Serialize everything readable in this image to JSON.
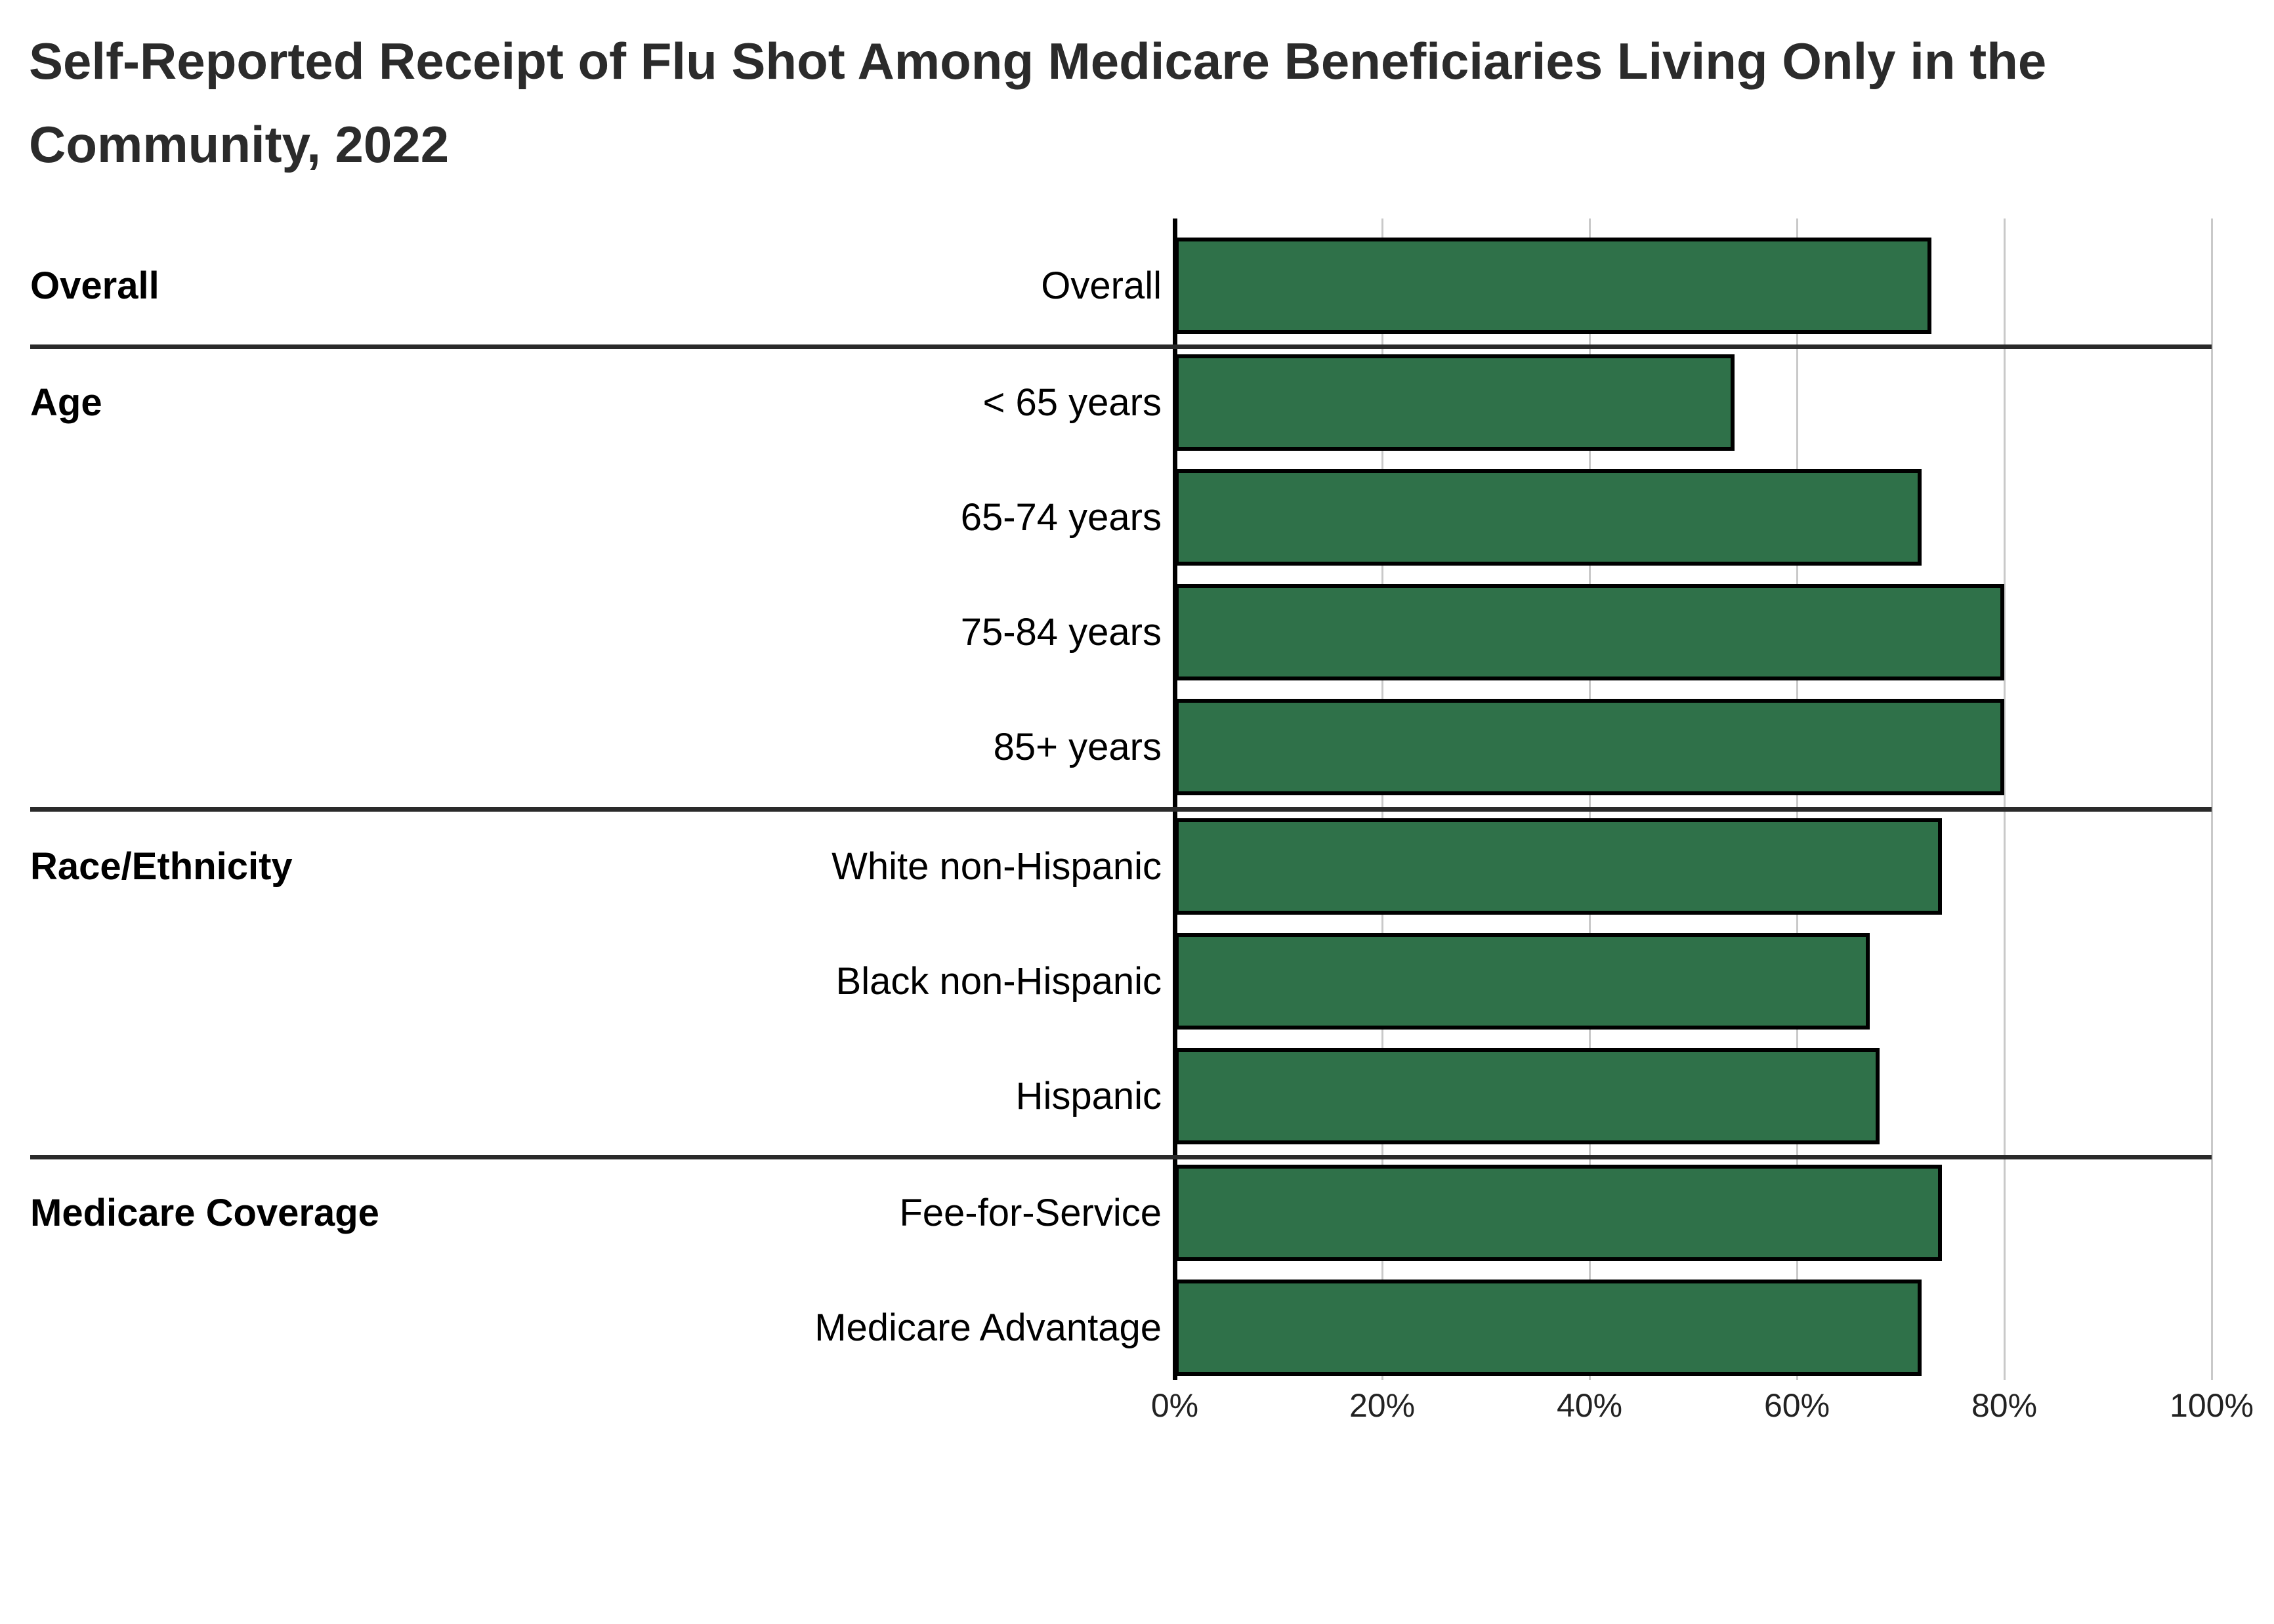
{
  "chart": {
    "title_lines": [
      "Self-Reported Receipt of Flu Shot Among Medicare Beneficiaries Living Only in the",
      "Community, 2022"
    ]
  },
  "chart_data": {
    "type": "bar",
    "orientation": "horizontal",
    "title": "Self-Reported Receipt of Flu Shot Among Medicare Beneficiaries Living Only in the Community, 2022",
    "xlabel": "",
    "ylabel": "",
    "unit": "percent",
    "xlim": [
      0,
      100
    ],
    "x_tick_labels": [
      "0%",
      "20%",
      "40%",
      "60%",
      "80%",
      "100%"
    ],
    "x_tick_values": [
      0,
      20,
      40,
      60,
      80,
      100
    ],
    "grid": true,
    "legend": false,
    "bar_fill_color": "#2F7149",
    "bar_border_color": "#000000",
    "gridline_color": "#c9c9c9",
    "axis_color": "#000000",
    "separator_color": "#2a2a2a",
    "groups": [
      {
        "section": "Overall",
        "rows": [
          {
            "label": "Overall",
            "value": 73
          }
        ]
      },
      {
        "section": "Age",
        "rows": [
          {
            "label": "< 65 years",
            "value": 54
          },
          {
            "label": "65-74 years",
            "value": 72
          },
          {
            "label": "75-84 years",
            "value": 80
          },
          {
            "label": "85+ years",
            "value": 80
          }
        ]
      },
      {
        "section": "Race/Ethnicity",
        "rows": [
          {
            "label": "White non-Hispanic",
            "value": 74
          },
          {
            "label": "Black non-Hispanic",
            "value": 67
          },
          {
            "label": "Hispanic",
            "value": 68
          }
        ]
      },
      {
        "section": "Medicare Coverage",
        "rows": [
          {
            "label": "Fee-for-Service",
            "value": 74
          },
          {
            "label": "Medicare Advantage",
            "value": 72
          }
        ]
      }
    ]
  }
}
